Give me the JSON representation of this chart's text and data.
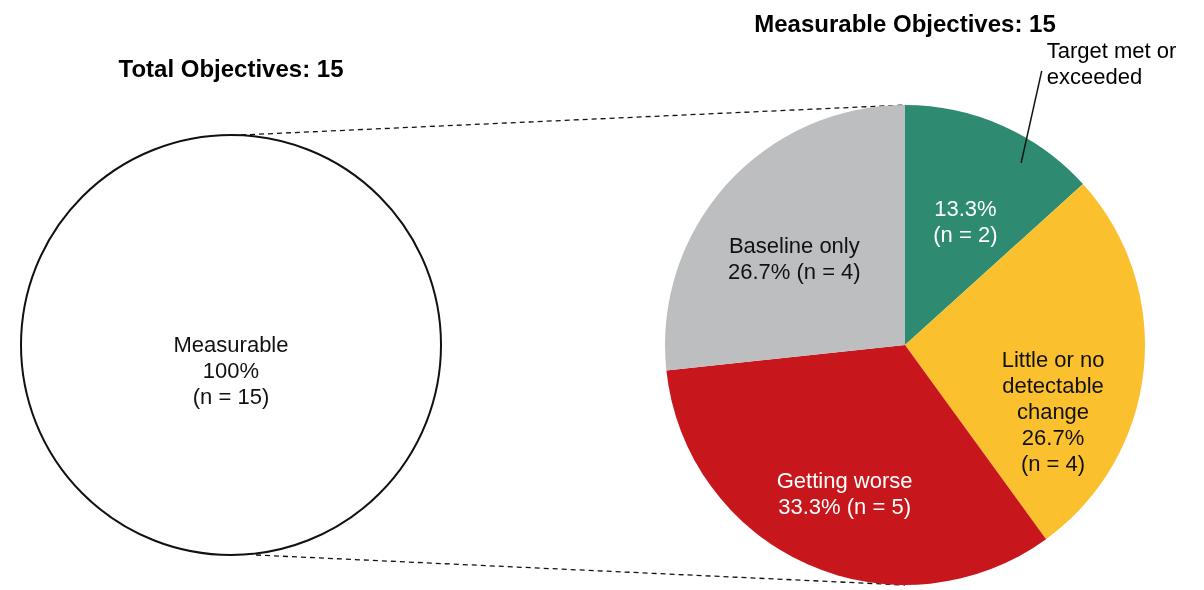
{
  "chart_data": [
    {
      "type": "pie",
      "title": "Total Objectives: 15",
      "categories": [
        "Measurable"
      ],
      "values": [
        100
      ],
      "colors": [
        "#ffffff"
      ],
      "value_labels": [
        "100%\n(n = 15)"
      ]
    },
    {
      "type": "pie",
      "title": "Measurable Objectives: 15",
      "categories": [
        "Target met or exceeded",
        "Little or no detectable change",
        "Getting worse",
        "Baseline only"
      ],
      "values": [
        13.3,
        26.7,
        33.3,
        26.7
      ],
      "colors": [
        "#2e8b72",
        "#fbc02d",
        "#c8161d",
        "#bcbec0"
      ],
      "value_labels": [
        "13.3%\n(n = 2)",
        "26.7%\n(n = 4)",
        "33.3% (n = 5)",
        "26.7% (n = 4)"
      ]
    }
  ]
}
